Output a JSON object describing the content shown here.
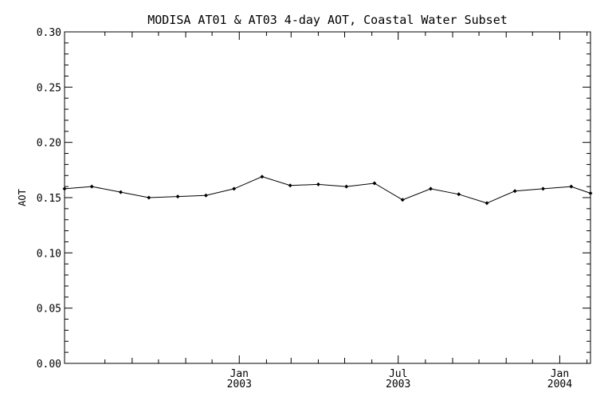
{
  "chart_data": {
    "type": "line",
    "title": "MODISA AT01 & AT03 4-day AOT, Coastal Water Subset",
    "xlabel": "",
    "ylabel": "AOT",
    "ylim": [
      0.0,
      0.3
    ],
    "xlim": [
      "2002-06-16",
      "2004-02-05"
    ],
    "grid": false,
    "legend": "none",
    "line_color": "#000000",
    "y_ticks": [
      "0.00",
      "0.05",
      "0.10",
      "0.15",
      "0.20",
      "0.25",
      "0.30"
    ],
    "x_ticks": [
      {
        "date": "2003-01-01",
        "label": "Jan",
        "year": "2003"
      },
      {
        "date": "2003-07-01",
        "label": "Jul",
        "year": "2003"
      },
      {
        "date": "2004-01-01",
        "label": "Jan",
        "year": "2004"
      }
    ],
    "series": [
      {
        "x": [
          "2002-06-16",
          "2002-07-17",
          "2002-08-19",
          "2002-09-20",
          "2002-10-23",
          "2002-11-24",
          "2002-12-26",
          "2003-01-27",
          "2003-02-28",
          "2003-04-01",
          "2003-05-03",
          "2003-06-04",
          "2003-07-06",
          "2003-08-07",
          "2003-09-08",
          "2003-10-10",
          "2003-11-11",
          "2003-12-13",
          "2004-01-14",
          "2004-02-05"
        ],
        "y": [
          0.158,
          0.16,
          0.155,
          0.15,
          0.151,
          0.152,
          0.158,
          0.169,
          0.161,
          0.162,
          0.16,
          0.163,
          0.148,
          0.158,
          0.153,
          0.145,
          0.156,
          0.158,
          0.16,
          0.154
        ]
      }
    ]
  }
}
